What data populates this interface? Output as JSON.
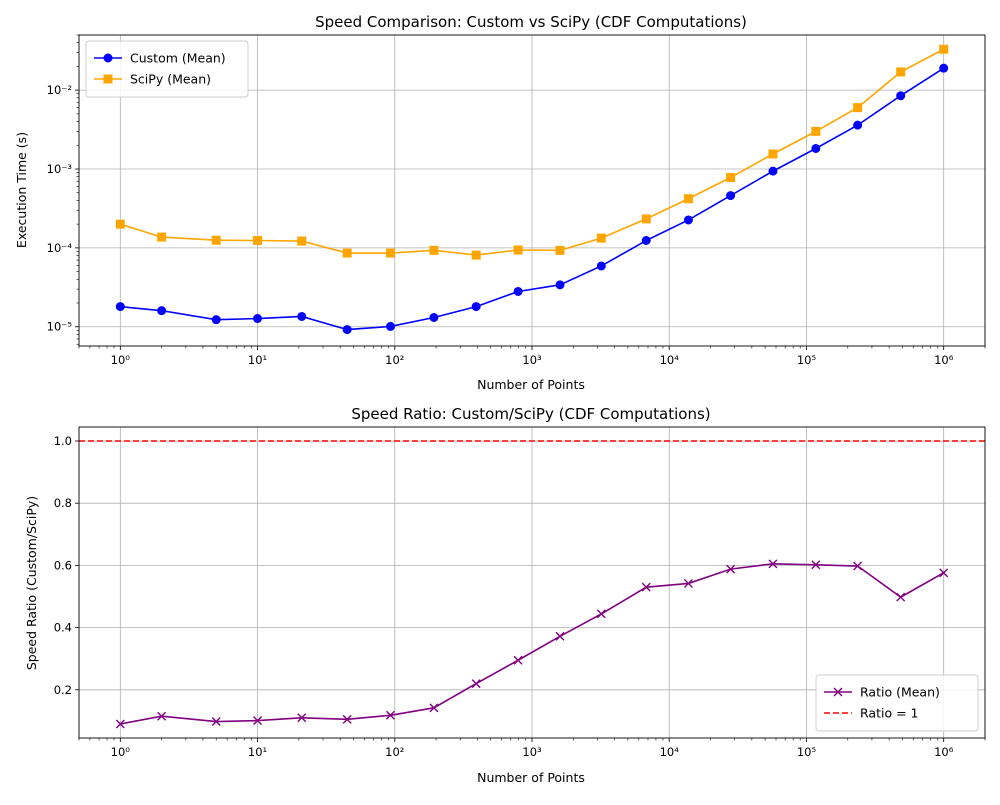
{
  "chart_data": [
    {
      "type": "line",
      "title": "Speed Comparison: Custom vs SciPy (CDF Computations)",
      "xlabel": "Number of Points",
      "ylabel": "Execution Time (s)",
      "xscale": "log",
      "yscale": "log",
      "xlim": [
        0.5,
        2000000
      ],
      "ylim": [
        5.7e-06,
        0.05
      ],
      "x_tick_labels": [
        "10⁰",
        "10¹",
        "10²",
        "10³",
        "10⁴",
        "10⁵",
        "10⁶"
      ],
      "y_tick_labels": [
        "10⁻⁵",
        "10⁻⁴",
        "10⁻³",
        "10⁻²"
      ],
      "grid": true,
      "legend_position": "top-left",
      "x": [
        1,
        2,
        5,
        10,
        21,
        45,
        93,
        193,
        392,
        792,
        1600,
        3200,
        6800,
        13800,
        28000,
        57000,
        117000,
        236000,
        486000,
        1000000
      ],
      "series": [
        {
          "name": "Custom (Mean)",
          "color": "#0000ff",
          "marker": "circle",
          "values": [
            1.8e-05,
            1.6e-05,
            1.23e-05,
            1.27e-05,
            1.35e-05,
            9.2e-06,
            1.01e-05,
            1.31e-05,
            1.8e-05,
            2.8e-05,
            3.4e-05,
            5.9e-05,
            0.000124,
            0.000226,
            0.00046,
            0.00094,
            0.00182,
            0.0036,
            0.0085,
            0.019
          ]
        },
        {
          "name": "SciPy (Mean)",
          "color": "#ffa500",
          "marker": "square",
          "values": [
            0.0002,
            0.000137,
            0.000125,
            0.000124,
            0.000122,
            8.6e-05,
            8.6e-05,
            9.3e-05,
            8.1e-05,
            9.4e-05,
            9.3e-05,
            0.000133,
            0.000233,
            0.00042,
            0.00078,
            0.00155,
            0.003,
            0.006,
            0.017,
            0.033
          ]
        }
      ]
    },
    {
      "type": "line",
      "title": "Speed Ratio: Custom/SciPy (CDF Computations)",
      "xlabel": "Number of Points",
      "ylabel": "Speed Ratio (Custom/SciPy)",
      "xscale": "log",
      "yscale": "linear",
      "xlim": [
        0.5,
        2000000
      ],
      "ylim": [
        0.045,
        1.045
      ],
      "x_tick_labels": [
        "10⁰",
        "10¹",
        "10²",
        "10³",
        "10⁴",
        "10⁵",
        "10⁶"
      ],
      "y_tick_labels": [
        "0.2",
        "0.4",
        "0.6",
        "0.8",
        "1.0"
      ],
      "grid": true,
      "legend_position": "bottom-right",
      "x": [
        1,
        2,
        5,
        10,
        21,
        45,
        93,
        193,
        392,
        792,
        1600,
        3200,
        6800,
        13800,
        28000,
        57000,
        117000,
        236000,
        486000,
        1000000
      ],
      "series": [
        {
          "name": "Ratio (Mean)",
          "color": "#800080",
          "marker": "x",
          "values": [
            0.09,
            0.115,
            0.098,
            0.101,
            0.11,
            0.105,
            0.118,
            0.142,
            0.22,
            0.295,
            0.372,
            0.444,
            0.53,
            0.542,
            0.588,
            0.605,
            0.602,
            0.598,
            0.498,
            0.576
          ]
        },
        {
          "name": "Ratio = 1",
          "color": "#ff0000",
          "style": "dashed",
          "hline": 1.0
        }
      ]
    }
  ]
}
